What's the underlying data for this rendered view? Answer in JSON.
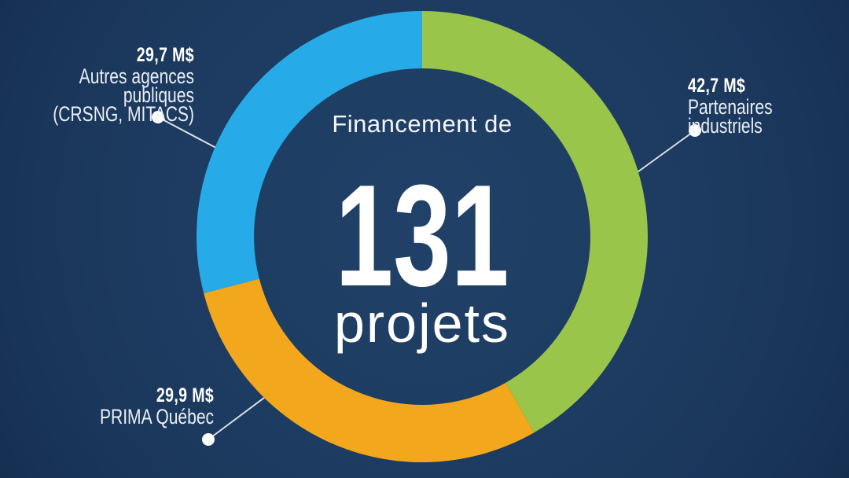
{
  "center": {
    "title": "Financement de",
    "number": "131",
    "unit": "projets"
  },
  "callouts": {
    "autres": {
      "value": "29,7 M$",
      "line1": "Autres agences publiques",
      "line2": "(CRSNG, MITACS)"
    },
    "partenaires": {
      "value": "42,7 M$",
      "line1": "Partenaires industriels"
    },
    "prima": {
      "value": "29,9 M$",
      "line1": "PRIMA Québec"
    }
  },
  "colors": {
    "background": "#1C3A5E",
    "green": "#99C54A",
    "orange": "#F3A71D",
    "blue": "#27AAE8",
    "text": "#FFFFFF",
    "leader_line": "#D9E0E8"
  },
  "chart_data": {
    "type": "pie",
    "subtype": "donut",
    "title": "Financement de 131 projets",
    "unit": "M$",
    "categories": [
      "Partenaires industriels",
      "PRIMA Québec",
      "Autres agences publiques (CRSNG, MITACS)"
    ],
    "values": [
      42.7,
      29.9,
      29.7
    ],
    "value_labels": [
      "42,7 M$",
      "29,9 M$",
      "29,7 M$"
    ],
    "colors": [
      "#99C54A",
      "#F3A71D",
      "#27AAE8"
    ],
    "total": 102.3,
    "start_angle_deg": 0,
    "direction": "clockwise",
    "center_label": [
      "Financement de",
      "131",
      "projets"
    ],
    "legend": "callout labels with leader lines"
  }
}
